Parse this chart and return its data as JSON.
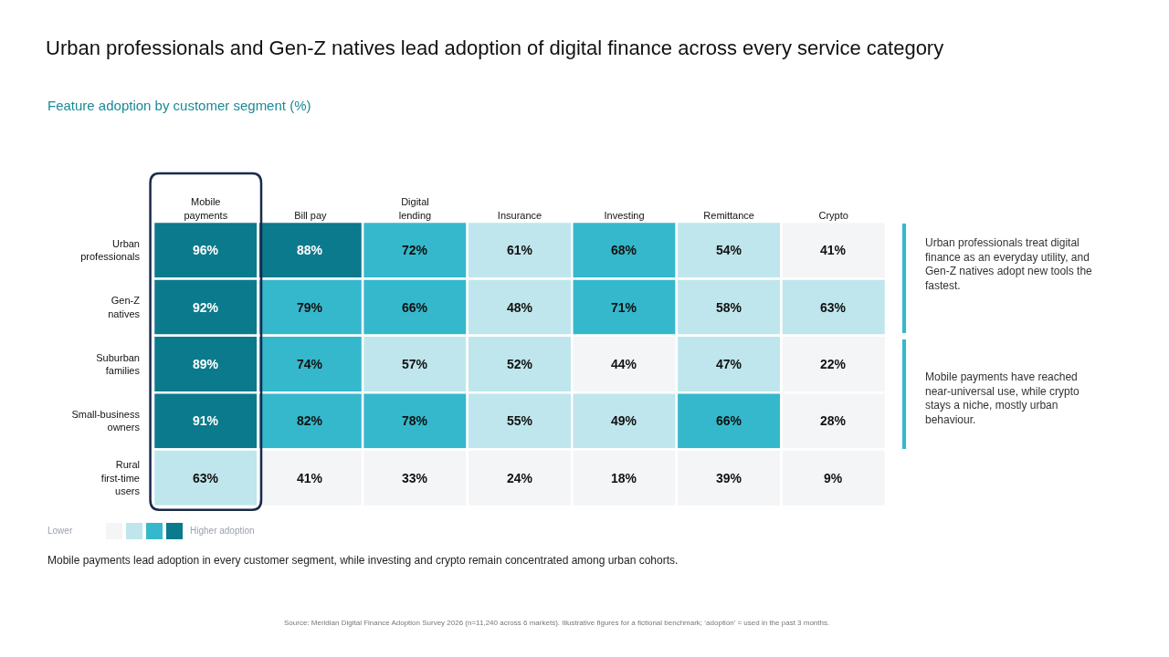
{
  "chart_data": {
    "type": "heatmap",
    "title": "Urban professionals and Gen-Z natives lead adoption of digital finance across every service category",
    "subtitle": "Feature adoption by customer segment (%)",
    "categories": [
      "Mobile payments",
      "Bill pay",
      "Digital lending",
      "Insurance",
      "Investing",
      "Remittance",
      "Crypto"
    ],
    "y_categories": [
      "Urban professionals",
      "Gen-Z natives",
      "Suburban families",
      "Small-business owners",
      "Rural first-time users"
    ],
    "cells": [
      [
        96,
        88,
        72,
        61,
        68,
        54,
        41
      ],
      [
        92,
        79,
        66,
        48,
        71,
        58,
        63
      ],
      [
        89,
        74,
        57,
        52,
        44,
        47,
        22
      ],
      [
        91,
        82,
        78,
        55,
        49,
        66,
        28
      ],
      [
        63,
        41,
        33,
        24,
        18,
        39,
        9
      ]
    ],
    "cell_labels": [
      [
        "96%",
        "88%",
        "72%",
        "61%",
        "68%",
        "54%",
        "41%"
      ],
      [
        "92%",
        "79%",
        "66%",
        "48%",
        "71%",
        "58%",
        "63%"
      ],
      [
        "89%",
        "74%",
        "57%",
        "52%",
        "44%",
        "47%",
        "22%"
      ],
      [
        "91%",
        "82%",
        "78%",
        "55%",
        "49%",
        "66%",
        "28%"
      ],
      [
        "63%",
        "41%",
        "33%",
        "24%",
        "18%",
        "39%",
        "9%"
      ]
    ],
    "annotations": [
      "Lower",
      "Higher adoption",
      "Urban professionals treat digital finance as an everyday utility, and Gen-Z natives adopt new tools the fastest.",
      "Mobile payments have reached near-universal use, while crypto stays a niche, mostly urban behaviour.",
      "Mobile payments lead adoption in every customer segment, while investing and crypto remain concentrated among urban cohorts.",
      "Source: Meridian Digital Finance Adoption Survey 2026 (n=11,240 across 6 markets). Illustrative figures for a fictional benchmark; ‘adoption’ = used in the past 3 months."
    ]
  }
}
